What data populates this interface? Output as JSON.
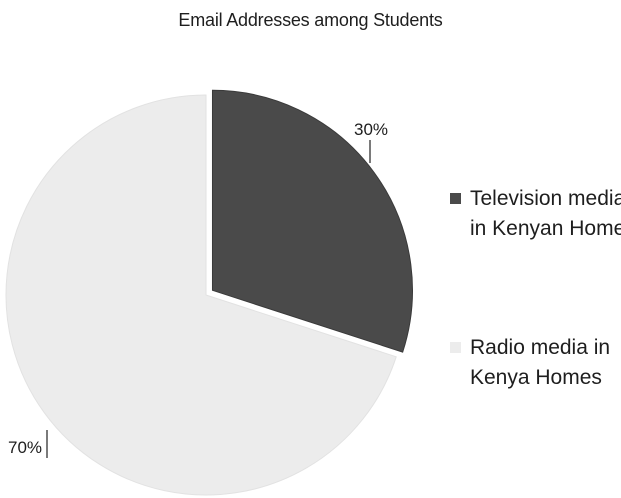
{
  "chart_data": {
    "type": "pie",
    "title": "Email Addresses among Students",
    "slices": [
      {
        "label": "Television media in Kenyan Home",
        "value": 30,
        "display": "30%",
        "color": "#4a4a4a"
      },
      {
        "label": "Radio media in Kenya Homes",
        "value": 70,
        "display": "70%",
        "color": "#ececec"
      }
    ],
    "legend_position": "right"
  }
}
